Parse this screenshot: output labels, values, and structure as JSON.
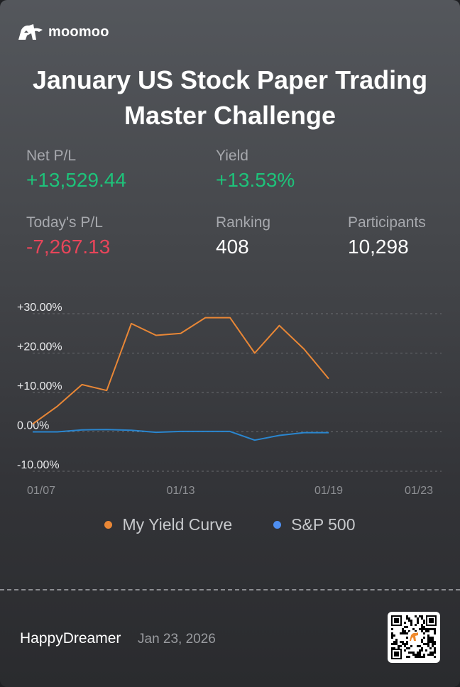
{
  "brand": {
    "name": "moomoo",
    "icon": "moomoo-bull-icon"
  },
  "title_line1": "January US Stock Paper Trading",
  "title_line2": "Master Challenge",
  "stats": {
    "net_pl": {
      "label": "Net P/L",
      "value": "+13,529.44"
    },
    "yield": {
      "label": "Yield",
      "value": "+13.53%"
    },
    "today_pl": {
      "label": "Today's P/L",
      "value": "-7,267.13"
    },
    "ranking": {
      "label": "Ranking",
      "value": "408"
    },
    "participants": {
      "label": "Participants",
      "value": "10,298"
    }
  },
  "colors": {
    "positive": "#1ec27a",
    "negative": "#e8455a",
    "my_curve": "#e98736",
    "sp500": "#2a86cf"
  },
  "chart_data": {
    "type": "line",
    "x": [
      "01/07",
      "01/08",
      "01/09",
      "01/10",
      "01/11",
      "01/12",
      "01/13",
      "01/14",
      "01/15",
      "01/16",
      "01/17",
      "01/18",
      "01/19",
      "01/20",
      "01/21",
      "01/22",
      "01/23"
    ],
    "xtick_labels": [
      "01/07",
      "01/13",
      "01/19",
      "01/23"
    ],
    "ytick_labels": [
      "+30.00%",
      "+20.00%",
      "+10.00%",
      "0.00%",
      "-10.00%"
    ],
    "yticks": [
      30,
      20,
      10,
      0,
      -10
    ],
    "ylim": [
      -10,
      30
    ],
    "grid": true,
    "legend_position": "bottom",
    "series": [
      {
        "name": "My Yield Curve",
        "color": "#e98736",
        "points": [
          [
            "01/07",
            2.0
          ],
          [
            "01/08",
            6.5
          ],
          [
            "01/09",
            12.0
          ],
          [
            "01/10",
            10.5
          ],
          [
            "01/11",
            27.5
          ],
          [
            "01/12",
            24.5
          ],
          [
            "01/13",
            25.0
          ],
          [
            "01/14",
            29.0
          ],
          [
            "01/15",
            29.0
          ],
          [
            "01/16",
            20.0
          ],
          [
            "01/17",
            27.0
          ],
          [
            "01/18",
            21.0
          ],
          [
            "01/19",
            13.5
          ]
        ]
      },
      {
        "name": "S&P 500",
        "color": "#2a86cf",
        "points": [
          [
            "01/07",
            0.0
          ],
          [
            "01/08",
            0.0
          ],
          [
            "01/09",
            0.5
          ],
          [
            "01/10",
            0.6
          ],
          [
            "01/11",
            0.4
          ],
          [
            "01/12",
            -0.1
          ],
          [
            "01/13",
            0.1
          ],
          [
            "01/14",
            0.1
          ],
          [
            "01/15",
            0.1
          ],
          [
            "01/16",
            -2.1
          ],
          [
            "01/17",
            -0.9
          ],
          [
            "01/18",
            -0.2
          ],
          [
            "01/19",
            -0.2
          ]
        ]
      }
    ]
  },
  "footer": {
    "username": "HappyDreamer",
    "date": "Jan 23, 2026",
    "qr_icon": "qr-code-icon"
  }
}
